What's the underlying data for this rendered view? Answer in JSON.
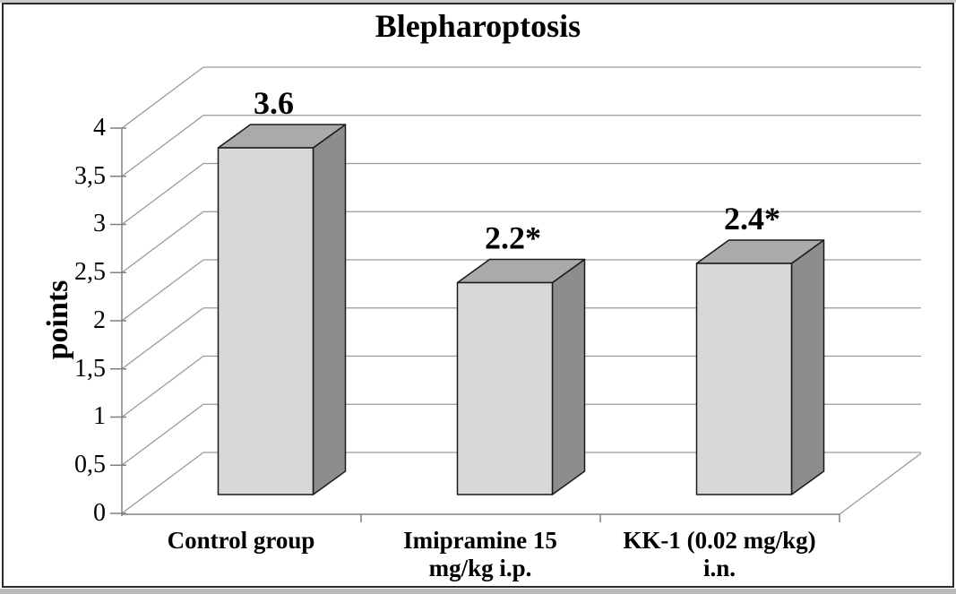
{
  "frame": {
    "background": "#ffffff",
    "border_color": "#2a2a2a",
    "edge_strip_color": "#c9c9c9"
  },
  "chart_data": {
    "type": "bar",
    "style": "3d-column",
    "title": "Blepharoptosis",
    "ylabel": "points",
    "xlabel": "",
    "categories": [
      "Control group",
      "Imipramine 15 mg/kg i.p.",
      "KK-1 (0.02 mg/kg) i.n."
    ],
    "category_lines": [
      [
        "Control group"
      ],
      [
        "Imipramine 15",
        "mg/kg i.p."
      ],
      [
        "KK-1 (0.02 mg/kg)",
        "i.n."
      ]
    ],
    "values": [
      3.6,
      2.2,
      2.4
    ],
    "data_labels": [
      "3.6",
      "2.2*",
      "2.4*"
    ],
    "ytick_labels": [
      "0",
      "0,5",
      "1",
      "1,5",
      "2",
      "2,5",
      "3",
      "3,5",
      "4"
    ],
    "ytick_values": [
      0,
      0.5,
      1,
      1.5,
      2,
      2.5,
      3,
      3.5,
      4
    ],
    "ylim": [
      0,
      4
    ],
    "grid": true,
    "legend": false,
    "colors": {
      "bar_front": "#d8d8d8",
      "bar_top": "#aaaaaa",
      "bar_side": "#8d8d8d",
      "bar_outline": "#1a1a1a",
      "gridline": "#9a9a9a",
      "axis": "#808080",
      "text": "#000000"
    }
  }
}
